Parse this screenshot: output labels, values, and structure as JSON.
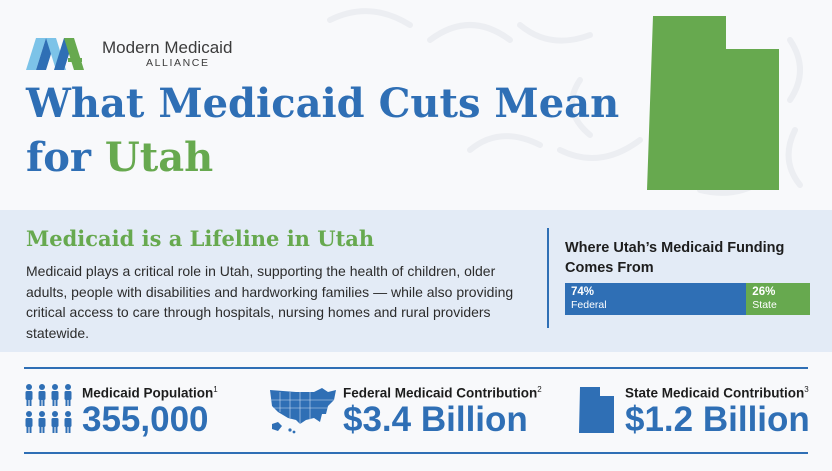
{
  "brand": {
    "name": "Modern Medicaid",
    "sub": "ALLIANCE"
  },
  "headline": {
    "line1": "What Medicaid Cuts Mean",
    "line2_prefix": "for ",
    "state": "Utah"
  },
  "lifeline": {
    "title": "Medicaid is a Lifeline in Utah",
    "body": "Medicaid plays a critical role in Utah, supporting the health of children, older adults, people with disabilities and hardworking families — while also providing critical access to care through hospitals, nursing homes and rural providers statewide."
  },
  "funding": {
    "title": "Where Utah’s Medicaid Funding Comes From",
    "segments": [
      {
        "percent_text": "74%",
        "label": "Federal",
        "value": 74
      },
      {
        "percent_text": "26%",
        "label": "State",
        "value": 26
      }
    ]
  },
  "stats": [
    {
      "label": "Medicaid Population",
      "note": "1",
      "value": "355,000",
      "icon": "people-icon"
    },
    {
      "label": "Federal Medicaid Contribution",
      "note": "2",
      "value": "$3.4 Billion",
      "icon": "us-map-icon"
    },
    {
      "label": "State Medicaid Contribution",
      "note": "3",
      "value": "$1.2 Billion",
      "icon": "utah-state-icon"
    }
  ],
  "colors": {
    "blue": "#2f6fb5",
    "green": "#67a94f",
    "light_blue_band": "#e3ebf6",
    "light_blue_logo": "#7cc3e8"
  }
}
